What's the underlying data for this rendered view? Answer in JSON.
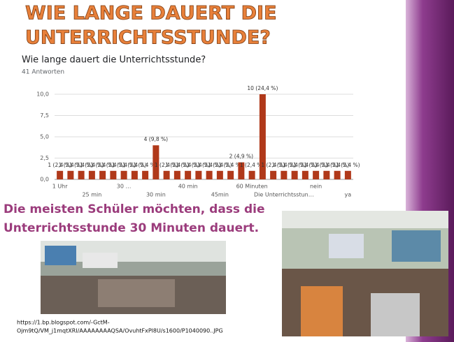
{
  "slide": {
    "title_lines": [
      "WIE LANGE DAUERT DIE",
      "UNTERRICHTSSTUNDE?"
    ],
    "conclusion_lines": [
      "Die meisten Schüler möchten, dass die",
      "Unterrichtsstunde 30 Minuten dauert."
    ],
    "source_lines": [
      "https://1.bp.blogspot.com/-GctM-",
      "Ojm9tQ/VM_j1mqtXRI/AAAAAAAAQSA/OvuhtFxPl8U/s1600/P1040090..JPG"
    ]
  },
  "chart_data": {
    "type": "bar",
    "title": "Wie lange dauert die Unterrichtsstunde?",
    "subtitle": "41 Antworten",
    "color": "#b0391a",
    "categories": [
      "1 Uhr",
      null,
      null,
      "25 min",
      null,
      null,
      "30 …",
      null,
      null,
      "30 min",
      null,
      null,
      "40 min",
      null,
      null,
      "45min",
      null,
      null,
      "60 Minuten",
      null,
      null,
      "Die Unterrichtsstun…",
      null,
      null,
      "nein",
      null,
      null,
      "ya"
    ],
    "values": [
      1,
      1,
      1,
      1,
      1,
      1,
      1,
      1,
      1,
      4,
      1,
      1,
      1,
      1,
      1,
      1,
      1,
      2,
      1,
      10,
      1,
      1,
      1,
      1,
      1,
      1,
      1,
      1
    ],
    "value_labels": [
      "1 (2,4 %)",
      "1 (2,4 %)",
      "1 (2,4 %)",
      "1 (2,4 %)",
      "1 (2,4 %)",
      "1 (2,4 %)",
      "1 (2,4 %)",
      "1 (2,4 %)",
      "1 (2,4 %)",
      "4 (9,8 %)",
      "1 (2,4 %)",
      "1 (2,4 %)",
      "1 (2,4 %)",
      "1 (2,4 %)",
      "1 (2,4 %)",
      "1 (2,4 %)",
      "1 (2,4 %)",
      "2 (4,9 %)",
      "1 (2,4 %)",
      "10 (24,4 %)",
      "1 (2,4 %)",
      "1 (2,4 %)",
      "1 (2,4 %)",
      "1 (2,4 %)",
      "1 (2,4 %)",
      "1 (2,4 %)",
      "1 (2,4 %)",
      "1 (2,4 %)"
    ],
    "ylim": [
      0,
      10
    ],
    "yticks": [
      {
        "value": 0,
        "label": "0,0"
      },
      {
        "value": 2.5,
        "label": "2,5"
      },
      {
        "value": 5,
        "label": "5,0"
      },
      {
        "value": 7.5,
        "label": "7,5"
      },
      {
        "value": 10,
        "label": "10,0"
      }
    ],
    "grid": true
  }
}
